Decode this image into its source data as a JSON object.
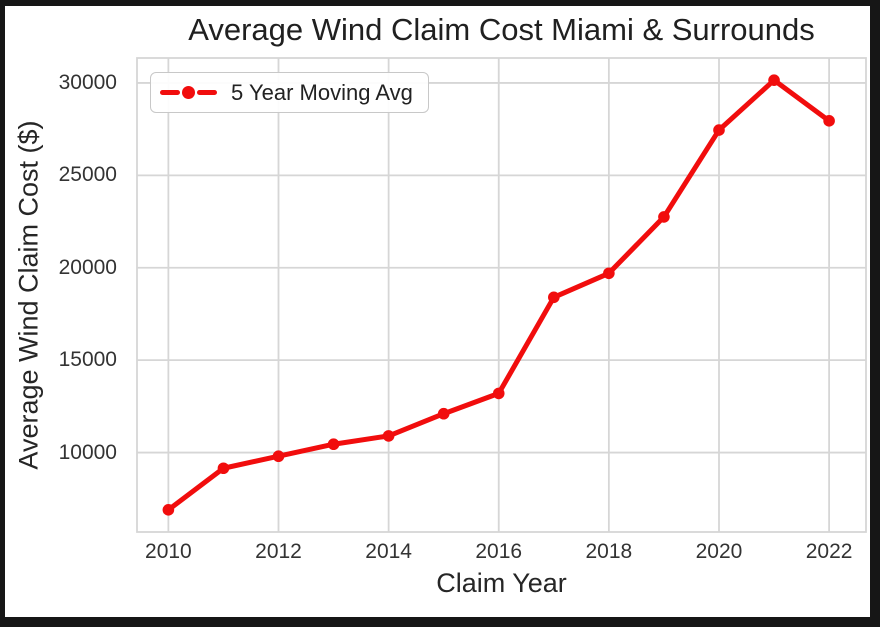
{
  "figure": {
    "title": "Average Wind Claim Cost Miami & Surrounds",
    "x_axis_label": "Claim Year",
    "y_axis_label": "Average Wind Claim Cost ($)",
    "legend": {
      "label": "5 Year Moving Avg",
      "marker": "red-line-with-dot"
    }
  },
  "chart_data": {
    "type": "line",
    "title": "Average Wind Claim Cost Miami & Surrounds",
    "xlabel": "Claim Year",
    "ylabel": "Average Wind Claim Cost ($)",
    "series": [
      {
        "name": "5 Year Moving Avg",
        "color": "#f10d0d",
        "marker": "circle",
        "x": [
          2010,
          2011,
          2012,
          2013,
          2014,
          2015,
          2016,
          2017,
          2018,
          2019,
          2020,
          2021,
          2022
        ],
        "values": [
          6900,
          9150,
          9800,
          10450,
          10900,
          12100,
          13200,
          18400,
          19700,
          22750,
          27450,
          30150,
          27950
        ]
      }
    ],
    "x_ticks": [
      2010,
      2012,
      2014,
      2016,
      2018,
      2020,
      2022
    ],
    "y_ticks": [
      10000,
      15000,
      20000,
      25000,
      30000
    ],
    "xlim": [
      2009.43,
      2022.67
    ],
    "ylim": [
      5700,
      31350
    ],
    "grid": true,
    "legend_position": "upper left"
  },
  "colors": {
    "line": "#f10d0d",
    "grid": "#d6d6d6",
    "text": "#262626",
    "frame": "#161616",
    "plot_background": "#ffffff"
  }
}
